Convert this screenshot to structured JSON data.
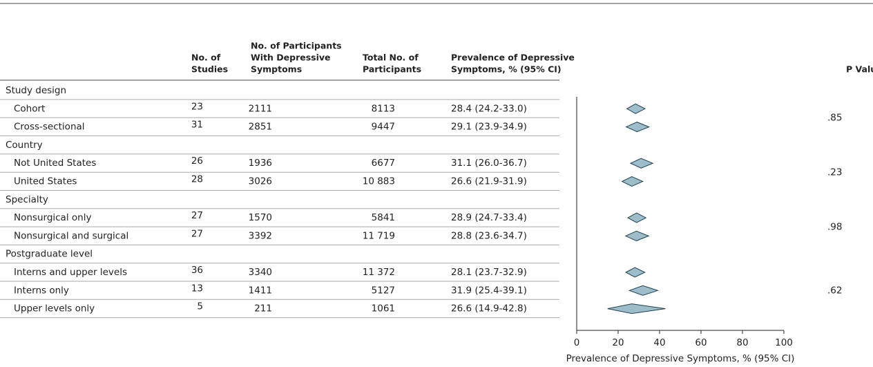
{
  "chart_data": {
    "type": "forest",
    "headers": {
      "studies": [
        "No. of",
        "Studies"
      ],
      "with_symptoms": [
        "No. of Participants",
        "With Depressive",
        "Symptoms"
      ],
      "total": [
        "Total No. of",
        "Participants"
      ],
      "prevalence": [
        "Prevalence of Depressive",
        "Symptoms, % (95% CI)"
      ],
      "p_value": "P Value"
    },
    "groups": [
      {
        "name": "Study design",
        "p_value": ".85",
        "rows": [
          {
            "label": "Cohort",
            "studies": 23,
            "with_symptoms": 2111,
            "total": 8113,
            "estimate": 28.4,
            "low": 24.2,
            "high": 33.0,
            "value_label": "28.4 (24.2-33.0)"
          },
          {
            "label": "Cross-sectional",
            "studies": 31,
            "with_symptoms": 2851,
            "total": 9447,
            "estimate": 29.1,
            "low": 23.9,
            "high": 34.9,
            "value_label": "29.1 (23.9-34.9)"
          }
        ]
      },
      {
        "name": "Country",
        "p_value": ".23",
        "rows": [
          {
            "label": "Not United States",
            "studies": 26,
            "with_symptoms": 1936,
            "total": 6677,
            "estimate": 31.1,
            "low": 26.0,
            "high": 36.7,
            "value_label": "31.1 (26.0-36.7)"
          },
          {
            "label": "United States",
            "studies": 28,
            "with_symptoms": 3026,
            "total": {
              "value": 10883,
              "label": "10 883"
            },
            "estimate": 26.6,
            "low": 21.9,
            "high": 31.9,
            "value_label": "26.6 (21.9-31.9)"
          }
        ]
      },
      {
        "name": "Specialty",
        "p_value": ".98",
        "rows": [
          {
            "label": "Nonsurgical only",
            "studies": 27,
            "with_symptoms": 1570,
            "total": 5841,
            "estimate": 28.9,
            "low": 24.7,
            "high": 33.4,
            "value_label": "28.9 (24.7-33.4)"
          },
          {
            "label": "Nonsurgical and surgical",
            "studies": 27,
            "with_symptoms": 3392,
            "total": {
              "value": 11719,
              "label": "11 719"
            },
            "estimate": 28.8,
            "low": 23.6,
            "high": 34.7,
            "value_label": "28.8 (23.6-34.7)"
          }
        ]
      },
      {
        "name": "Postgraduate level",
        "p_value": ".62",
        "rows": [
          {
            "label": "Interns and upper levels",
            "studies": 36,
            "with_symptoms": 3340,
            "total": {
              "value": 11372,
              "label": "11 372"
            },
            "estimate": 28.1,
            "low": 23.7,
            "high": 32.9,
            "value_label": "28.1 (23.7-32.9)"
          },
          {
            "label": "Interns only",
            "studies": 13,
            "with_symptoms": 1411,
            "total": 5127,
            "estimate": 31.9,
            "low": 25.4,
            "high": 39.1,
            "value_label": "31.9 (25.4-39.1)"
          },
          {
            "label": "Upper levels only",
            "studies": 5,
            "with_symptoms": 211,
            "total": 1061,
            "estimate": 26.6,
            "low": 14.9,
            "high": 42.8,
            "value_label": "26.6 (14.9-42.8)"
          }
        ]
      }
    ],
    "xlim": [
      0,
      100
    ],
    "xticks": [
      0,
      20,
      40,
      60,
      80,
      100
    ],
    "xlabel": "Prevalence of Depressive Symptoms, % (95% CI)",
    "color": "#9dbdca"
  }
}
